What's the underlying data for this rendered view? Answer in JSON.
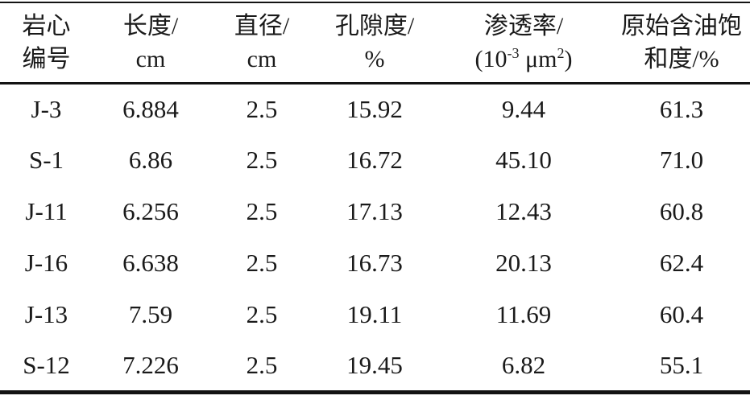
{
  "table": {
    "text_color": "#1a1a1a",
    "rule_color": "#131313",
    "columns": [
      {
        "line1": "岩心",
        "line2": "编号"
      },
      {
        "line1": "长度/",
        "line2": "cm"
      },
      {
        "line1": "直径/",
        "line2": "cm"
      },
      {
        "line1": "孔隙度/",
        "line2": "%"
      },
      {
        "line1": "渗透率/",
        "line2": "(10⁻³ μm²)",
        "line2_parts": {
          "open": "(10",
          "exp1": "-3",
          "mid": " μm",
          "exp2": "2",
          "close": ")"
        }
      },
      {
        "line1": "原始含油饱",
        "line2": "和度/%"
      }
    ],
    "rows": [
      [
        "J-3",
        "6.884",
        "2.5",
        "15.92",
        "9.44",
        "61.3"
      ],
      [
        "S-1",
        "6.86",
        "2.5",
        "16.72",
        "45.10",
        "71.0"
      ],
      [
        "J-11",
        "6.256",
        "2.5",
        "17.13",
        "12.43",
        "60.8"
      ],
      [
        "J-16",
        "6.638",
        "2.5",
        "16.73",
        "20.13",
        "62.4"
      ],
      [
        "J-13",
        "7.59",
        "2.5",
        "19.11",
        "11.69",
        "60.4"
      ],
      [
        "S-12",
        "7.226",
        "2.5",
        "19.45",
        "6.82",
        "55.1"
      ]
    ]
  }
}
